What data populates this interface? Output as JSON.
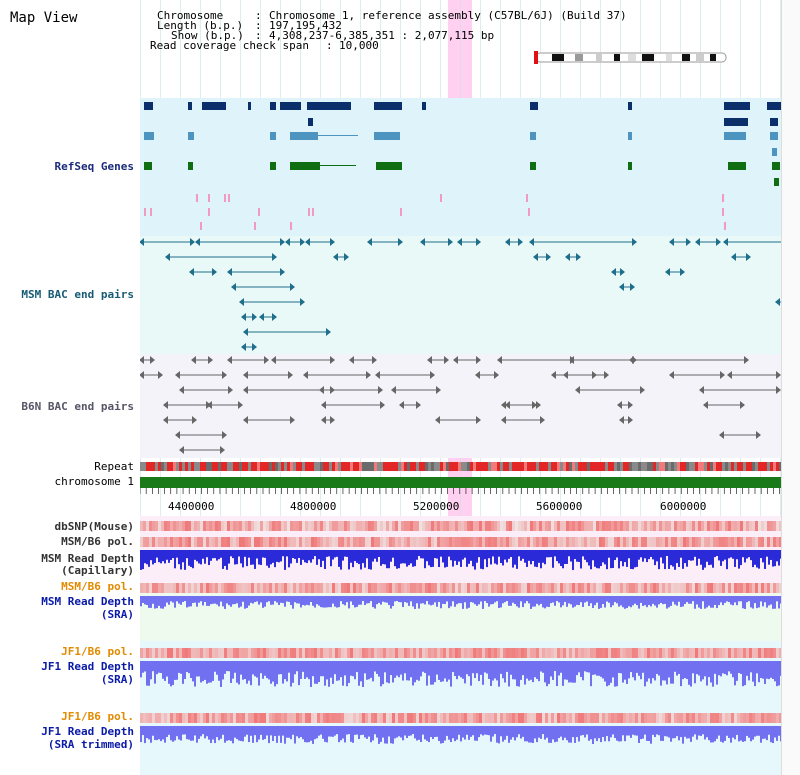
{
  "app": {
    "title": "Map View"
  },
  "info": {
    "chromosome_key": "Chromosome",
    "chromosome_val": "Chromosome 1, reference assembly (C57BL/6J) (Build 37)",
    "length_key": "Length (b.p.)",
    "length_val": "197,195,432",
    "show_key": "Show (b.p.)",
    "show_val": "4,308,237-6,385,351 : 2,077,115 bp",
    "coverage_key": "Read coverage check span",
    "coverage_val": "10,000"
  },
  "tracks": {
    "refseq": "RefSeq Genes",
    "msm_bac": "MSM BAC end pairs",
    "b6n_bac": "B6N BAC end pairs",
    "repeat": "Repeat",
    "chromosome": "chromosome 1",
    "dbsnp": "dbSNP(Mouse)",
    "msm_b6_pol_1": "MSM/B6 pol.",
    "msm_depth_cap_1": "MSM Read Depth",
    "msm_depth_cap_2": "(Capillary)",
    "msm_b6_pol_2": "MSM/B6 pol.",
    "msm_depth_sra_1": "MSM Read Depth",
    "msm_depth_sra_2": "(SRA)",
    "jf1_b6_pol_1": "JF1/B6 pol.",
    "jf1_depth_sra_1": "JF1 Read Depth",
    "jf1_depth_sra_2": "(SRA)",
    "jf1_b6_pol_2": "JF1/B6 pol.",
    "jf1_depth_trim_1": "JF1 Read Depth",
    "jf1_depth_trim_2": "(SRA trimmed)"
  },
  "axis": {
    "ticks": [
      "4400000",
      "4800000",
      "5200000",
      "5600000",
      "6000000"
    ]
  },
  "colors": {
    "refseq_bg": "#dff3fb",
    "bac_bg": "#eafaf6",
    "b6n_bg": "#f4f4fb",
    "lower_bg": "#eef8fb",
    "gene_dark": "#0b2f6b",
    "gene_mid": "#4e94c0",
    "gene_green": "#0f6e12",
    "bac_line": "#1f6e8c",
    "b6n_line": "#666666",
    "pink": "#f19ac2",
    "chrom_green": "#1a7a1a",
    "depth_blue": "#2a2ad8",
    "depth_light": "#7070f0",
    "pol_red": "#e83030",
    "highlight": "#ff96dc"
  }
}
